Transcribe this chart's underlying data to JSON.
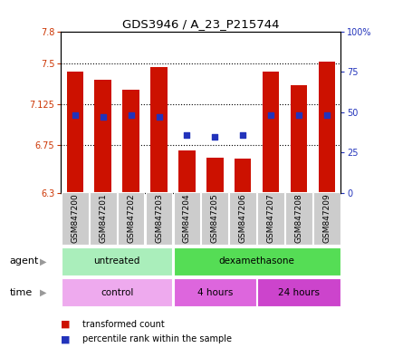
{
  "title": "GDS3946 / A_23_P215744",
  "samples": [
    "GSM847200",
    "GSM847201",
    "GSM847202",
    "GSM847203",
    "GSM847204",
    "GSM847205",
    "GSM847206",
    "GSM847207",
    "GSM847208",
    "GSM847209"
  ],
  "transformed_count": [
    7.43,
    7.35,
    7.26,
    7.47,
    6.7,
    6.63,
    6.62,
    7.43,
    7.3,
    7.52
  ],
  "percentile_rank": [
    48,
    47,
    48,
    47,
    36,
    35,
    36,
    48,
    48,
    48
  ],
  "ylim_left": [
    6.3,
    7.8
  ],
  "ylim_right": [
    0,
    100
  ],
  "yticks_left": [
    6.3,
    6.75,
    7.125,
    7.5,
    7.8
  ],
  "ytick_labels_left": [
    "6.3",
    "6.75",
    "7.125",
    "7.5",
    "7.8"
  ],
  "yticks_right": [
    0,
    25,
    50,
    75,
    100
  ],
  "ytick_labels_right": [
    "0",
    "25",
    "50",
    "75",
    "100%"
  ],
  "bar_color": "#cc1100",
  "dot_color": "#2233bb",
  "agent_untreated_label": "untreated",
  "agent_dexamethasone_label": "dexamethasone",
  "time_control_label": "control",
  "time_4h_label": "4 hours",
  "time_24h_label": "24 hours",
  "agent_label": "agent",
  "time_label": "time",
  "agent_untreated_color": "#aaeebb",
  "agent_dexamethasone_color": "#55dd55",
  "time_control_color": "#eeaaee",
  "time_4h_color": "#dd66dd",
  "time_24h_color": "#cc44cc",
  "legend_red_label": "transformed count",
  "legend_blue_label": "percentile rank within the sample",
  "bar_bottom": 6.3,
  "background_color": "#ffffff",
  "tick_bg_color": "#cccccc",
  "n_untreated": 4,
  "n_dex_4h": 3,
  "n_dex_24h": 3
}
